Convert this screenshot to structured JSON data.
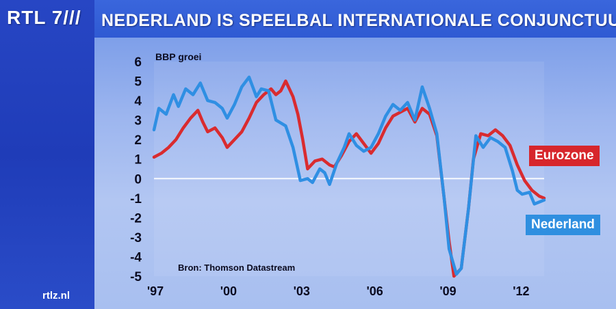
{
  "header": {
    "logo": "RTL 7///",
    "title": "NEDERLAND IS SPEELBAL INTERNATIONALE CONJUNCTUUR"
  },
  "footer": {
    "site": "rtlz.nl"
  },
  "colors": {
    "eurozone": "#d92b2f",
    "nederland": "#2f8fe3",
    "zero_line": "#ffffff"
  },
  "chart_data": {
    "type": "line",
    "ylabel": "BBP groei",
    "source": "Bron: Thomson Datastream",
    "ylim": [
      -5,
      6
    ],
    "yticks": [
      "6",
      "5",
      "4",
      "3",
      "2",
      "1",
      "0",
      "-1",
      "-2",
      "-3",
      "-4",
      "-5"
    ],
    "xticks": [
      {
        "label": "'97",
        "year": 1997
      },
      {
        "label": "'00",
        "year": 2000
      },
      {
        "label": "'03",
        "year": 2003
      },
      {
        "label": "'06",
        "year": 2006
      },
      {
        "label": "'09",
        "year": 2009
      },
      {
        "label": "'12",
        "year": 2012
      }
    ],
    "series": [
      {
        "name": "Eurozone",
        "points": [
          [
            1997.0,
            1.1
          ],
          [
            1997.3,
            1.3
          ],
          [
            1997.6,
            1.6
          ],
          [
            1997.9,
            2.0
          ],
          [
            1998.2,
            2.6
          ],
          [
            1998.5,
            3.1
          ],
          [
            1998.8,
            3.5
          ],
          [
            1999.0,
            2.9
          ],
          [
            1999.2,
            2.4
          ],
          [
            1999.5,
            2.6
          ],
          [
            1999.8,
            2.1
          ],
          [
            2000.0,
            1.6
          ],
          [
            2000.3,
            2.0
          ],
          [
            2000.6,
            2.4
          ],
          [
            2000.9,
            3.1
          ],
          [
            2001.2,
            3.9
          ],
          [
            2001.5,
            4.3
          ],
          [
            2001.8,
            4.6
          ],
          [
            2002.0,
            4.3
          ],
          [
            2002.2,
            4.5
          ],
          [
            2002.4,
            5.0
          ],
          [
            2002.7,
            4.2
          ],
          [
            2002.9,
            3.3
          ],
          [
            2003.1,
            2.0
          ],
          [
            2003.3,
            0.5
          ],
          [
            2003.6,
            0.9
          ],
          [
            2003.9,
            1.0
          ],
          [
            2004.2,
            0.7
          ],
          [
            2004.4,
            0.6
          ],
          [
            2004.7,
            1.2
          ],
          [
            2005.0,
            1.9
          ],
          [
            2005.3,
            2.3
          ],
          [
            2005.6,
            1.8
          ],
          [
            2005.9,
            1.3
          ],
          [
            2006.2,
            1.8
          ],
          [
            2006.5,
            2.6
          ],
          [
            2006.8,
            3.2
          ],
          [
            2007.1,
            3.4
          ],
          [
            2007.4,
            3.6
          ],
          [
            2007.7,
            2.9
          ],
          [
            2008.0,
            3.6
          ],
          [
            2008.3,
            3.3
          ],
          [
            2008.6,
            2.2
          ],
          [
            2008.9,
            -1.0
          ],
          [
            2009.1,
            -3.2
          ],
          [
            2009.3,
            -5.0
          ],
          [
            2009.6,
            -4.6
          ],
          [
            2009.9,
            -1.5
          ],
          [
            2010.1,
            1.0
          ],
          [
            2010.4,
            2.3
          ],
          [
            2010.7,
            2.2
          ],
          [
            2011.0,
            2.5
          ],
          [
            2011.3,
            2.2
          ],
          [
            2011.6,
            1.7
          ],
          [
            2011.9,
            0.7
          ],
          [
            2012.2,
            -0.1
          ],
          [
            2012.5,
            -0.6
          ],
          [
            2012.8,
            -0.9
          ],
          [
            2013.0,
            -1.0
          ]
        ]
      },
      {
        "name": "Nederland",
        "points": [
          [
            1997.0,
            2.5
          ],
          [
            1997.2,
            3.6
          ],
          [
            1997.5,
            3.3
          ],
          [
            1997.8,
            4.3
          ],
          [
            1998.0,
            3.7
          ],
          [
            1998.3,
            4.6
          ],
          [
            1998.6,
            4.3
          ],
          [
            1998.9,
            4.9
          ],
          [
            1999.2,
            4.0
          ],
          [
            1999.5,
            3.9
          ],
          [
            1999.8,
            3.6
          ],
          [
            2000.0,
            3.1
          ],
          [
            2000.3,
            3.8
          ],
          [
            2000.6,
            4.7
          ],
          [
            2000.9,
            5.2
          ],
          [
            2001.2,
            4.2
          ],
          [
            2001.4,
            4.6
          ],
          [
            2001.7,
            4.5
          ],
          [
            2002.0,
            3.0
          ],
          [
            2002.4,
            2.7
          ],
          [
            2002.7,
            1.6
          ],
          [
            2003.0,
            -0.1
          ],
          [
            2003.3,
            0.0
          ],
          [
            2003.5,
            -0.2
          ],
          [
            2003.8,
            0.5
          ],
          [
            2004.0,
            0.3
          ],
          [
            2004.2,
            -0.3
          ],
          [
            2004.5,
            0.8
          ],
          [
            2004.8,
            1.6
          ],
          [
            2005.0,
            2.3
          ],
          [
            2005.3,
            1.7
          ],
          [
            2005.6,
            1.4
          ],
          [
            2005.9,
            1.6
          ],
          [
            2006.2,
            2.3
          ],
          [
            2006.5,
            3.2
          ],
          [
            2006.8,
            3.8
          ],
          [
            2007.1,
            3.5
          ],
          [
            2007.4,
            3.9
          ],
          [
            2007.7,
            3.0
          ],
          [
            2008.0,
            4.7
          ],
          [
            2008.3,
            3.6
          ],
          [
            2008.6,
            2.3
          ],
          [
            2008.9,
            -1.0
          ],
          [
            2009.1,
            -3.6
          ],
          [
            2009.4,
            -4.9
          ],
          [
            2009.6,
            -4.6
          ],
          [
            2009.9,
            -1.5
          ],
          [
            2010.2,
            2.2
          ],
          [
            2010.5,
            1.6
          ],
          [
            2010.8,
            2.1
          ],
          [
            2011.1,
            1.9
          ],
          [
            2011.4,
            1.6
          ],
          [
            2011.7,
            0.4
          ],
          [
            2011.9,
            -0.6
          ],
          [
            2012.1,
            -0.8
          ],
          [
            2012.4,
            -0.7
          ],
          [
            2012.6,
            -1.3
          ],
          [
            2012.8,
            -1.2
          ],
          [
            2013.0,
            -1.1
          ]
        ]
      }
    ]
  }
}
